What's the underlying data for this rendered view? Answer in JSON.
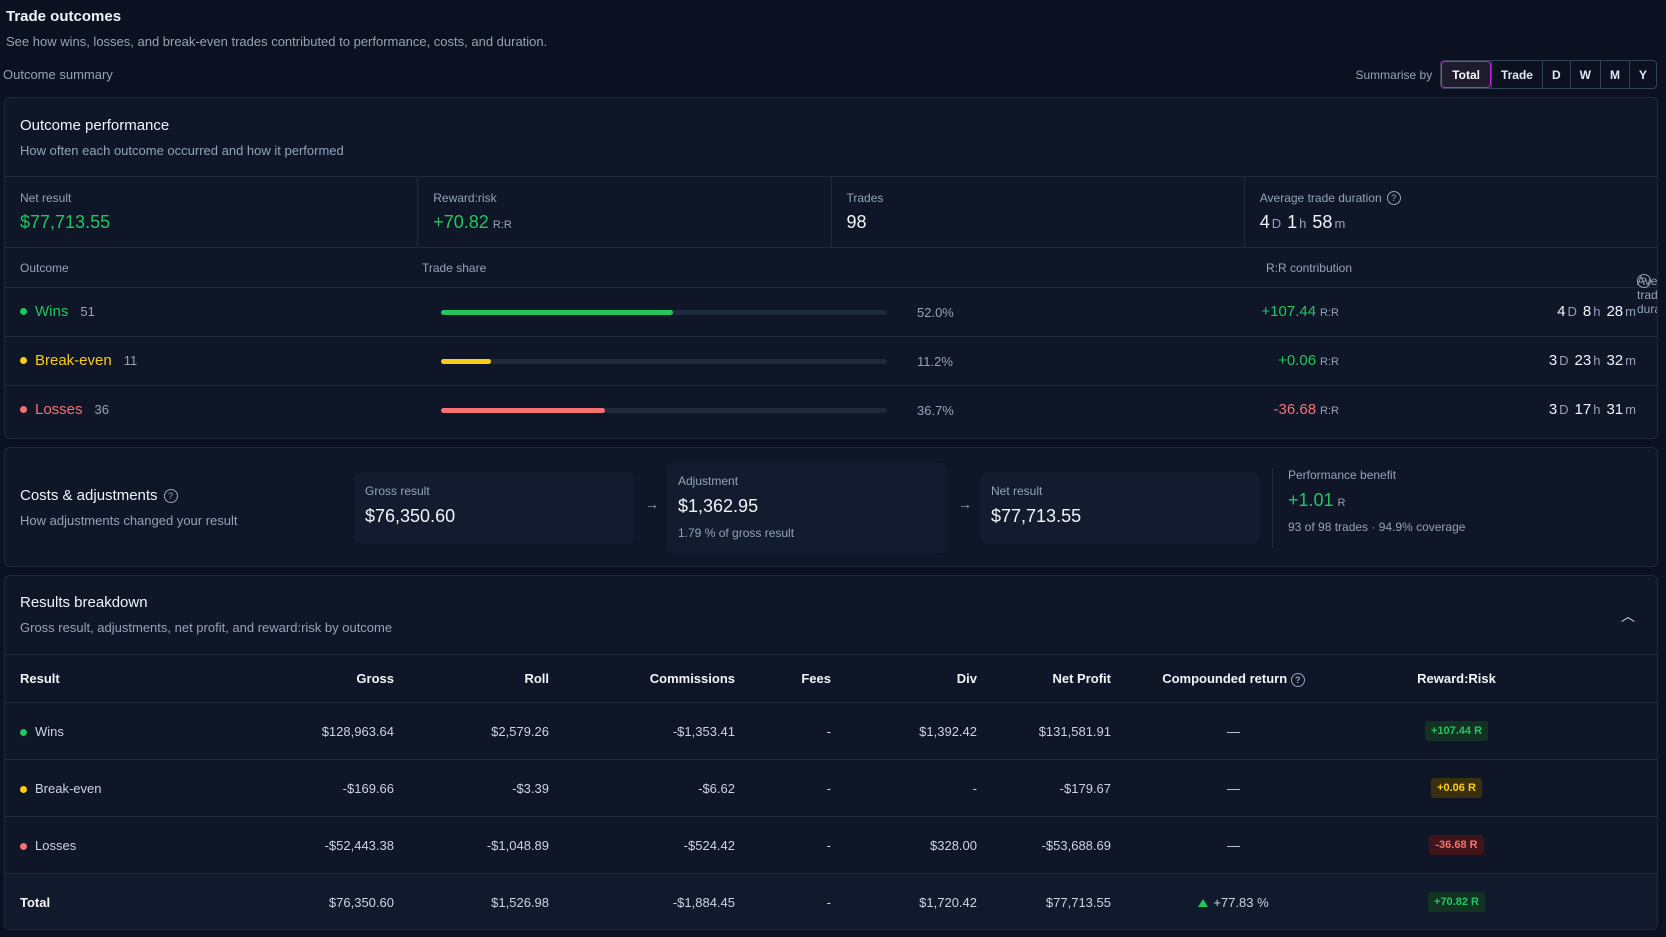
{
  "header": {
    "title": "Trade outcomes",
    "subtitle": "See how wins, losses, and break-even trades contributed to performance, costs, and duration.",
    "summary_label": "Outcome summary"
  },
  "summarise": {
    "label": "Summarise by",
    "options": [
      "Total",
      "Trade",
      "D",
      "W",
      "M",
      "Y"
    ],
    "selected": "Total"
  },
  "performance": {
    "title": "Outcome performance",
    "subtitle": "How often each outcome occurred and how it performed",
    "stats": {
      "net_label": "Net result",
      "net_value": "$77,713.55",
      "rr_label": "Reward:risk",
      "rr_value": "+70.82",
      "rr_unit": "R:R",
      "trades_label": "Trades",
      "trades_value": "98",
      "dur_label": "Average trade duration",
      "dur_d": "4",
      "dur_h": "1",
      "dur_m": "58"
    },
    "columns": {
      "outcome": "Outcome",
      "share": "Trade share",
      "rr": "R:R contribution",
      "dur": "Average trade duration"
    },
    "units": {
      "d": "D",
      "h": "h",
      "m": "m",
      "rr": "R:R"
    },
    "rows": [
      {
        "name": "Wins",
        "count": "51",
        "share_pct": "52.0%",
        "share": 0.52,
        "rr": "+107.44",
        "d": "4",
        "h": "8",
        "m": "28"
      },
      {
        "name": "Break-even",
        "count": "11",
        "share_pct": "11.2%",
        "share": 0.112,
        "rr": "+0.06",
        "d": "3",
        "h": "23",
        "m": "32"
      },
      {
        "name": "Losses",
        "count": "36",
        "share_pct": "36.7%",
        "share": 0.367,
        "rr": "-36.68",
        "d": "3",
        "h": "17",
        "m": "31"
      }
    ]
  },
  "costs": {
    "title": "Costs & adjustments",
    "subtitle": "How adjustments changed your result",
    "gross_label": "Gross result",
    "gross_value": "$76,350.60",
    "adj_label": "Adjustment",
    "adj_value": "$1,362.95",
    "adj_note": "1.79 % of gross result",
    "net_label": "Net result",
    "net_value": "$77,713.55",
    "benefit_label": "Performance benefit",
    "benefit_value": "+1.01",
    "benefit_unit": "R",
    "benefit_note": "93 of 98 trades · 94.9% coverage"
  },
  "results": {
    "title": "Results breakdown",
    "subtitle": "Gross result, adjustments, net profit, and reward:risk by outcome",
    "columns": [
      "Result",
      "Gross",
      "Roll",
      "Commissions",
      "Fees",
      "Div",
      "Net Profit",
      "Compounded return",
      "Reward:Risk"
    ],
    "rows": [
      {
        "result": "Wins",
        "gross": "$128,963.64",
        "roll": "$2,579.26",
        "comm": "-$1,353.41",
        "fees": "-",
        "div": "$1,392.42",
        "net": "$131,581.91",
        "comp": "—",
        "rr": "+107.44",
        "rr_unit": "R"
      },
      {
        "result": "Break-even",
        "gross": "-$169.66",
        "roll": "-$3.39",
        "comm": "-$6.62",
        "fees": "-",
        "div": "-",
        "net": "-$179.67",
        "comp": "—",
        "rr": "+0.06",
        "rr_unit": "R"
      },
      {
        "result": "Losses",
        "gross": "-$52,443.38",
        "roll": "-$1,048.89",
        "comm": "-$524.42",
        "fees": "-",
        "div": "$328.00",
        "net": "-$53,688.69",
        "comp": "—",
        "rr": "-36.68",
        "rr_unit": "R"
      }
    ],
    "total": {
      "result": "Total",
      "gross": "$76,350.60",
      "roll": "$1,526.98",
      "comm": "-$1,884.45",
      "fees": "-",
      "div": "$1,720.42",
      "net": "$77,713.55",
      "comp": "+77.83 %",
      "rr": "+70.82",
      "rr_unit": "R"
    }
  },
  "colors": {
    "win": "#22c55e",
    "breakeven": "#facc15",
    "loss": "#f87171",
    "accent": "#c026d3"
  }
}
